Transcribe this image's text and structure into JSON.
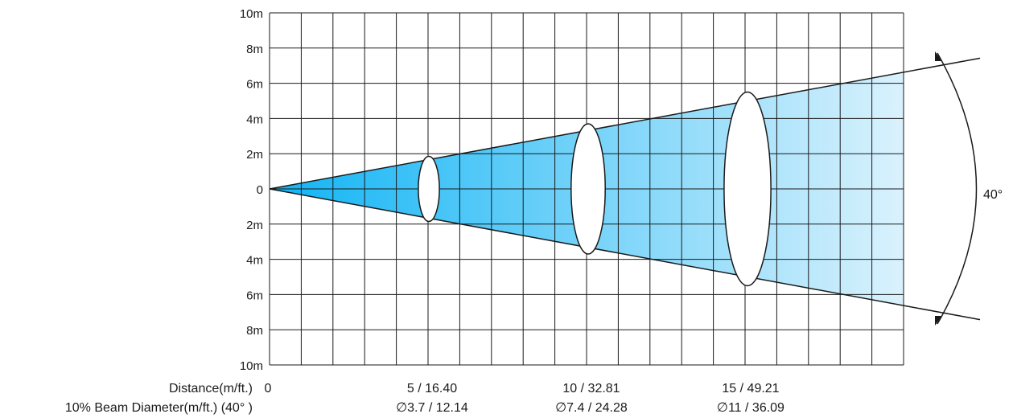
{
  "y_tick_labels": [
    "10m",
    "8m",
    "6m",
    "4m",
    "2m",
    "0",
    "2m",
    "4m",
    "6m",
    "8m",
    "10m"
  ],
  "row_labels": {
    "distance": "Distance(m/ft.)",
    "beam_diameter": "10% Beam Diameter(m/ft.) (40° )"
  },
  "origin_label": "0",
  "beam_angle_label": "40°",
  "colors": {
    "beam_near": "#10b4f5",
    "beam_far": "#f2f9fe",
    "grid": "#1a1a1a"
  },
  "chart_data": {
    "type": "beam-angle",
    "beam_angle_deg": 40,
    "grid": true,
    "ylim": [
      -10,
      10
    ],
    "ytick_values": [
      10,
      8,
      6,
      4,
      2,
      0,
      -2,
      -4,
      -6,
      -8,
      -10
    ],
    "points": [
      {
        "distance": 5,
        "distance_label": "5 / 16.40",
        "diameter": 3.7,
        "diameter_label": "∅3.7 / 12.14"
      },
      {
        "distance": 10,
        "distance_label": "10 / 32.81",
        "diameter": 7.4,
        "diameter_label": "∅7.4 / 24.28"
      },
      {
        "distance": 15,
        "distance_label": "15 / 49.21",
        "diameter": 11,
        "diameter_label": "∅11 / 36.09"
      }
    ]
  }
}
